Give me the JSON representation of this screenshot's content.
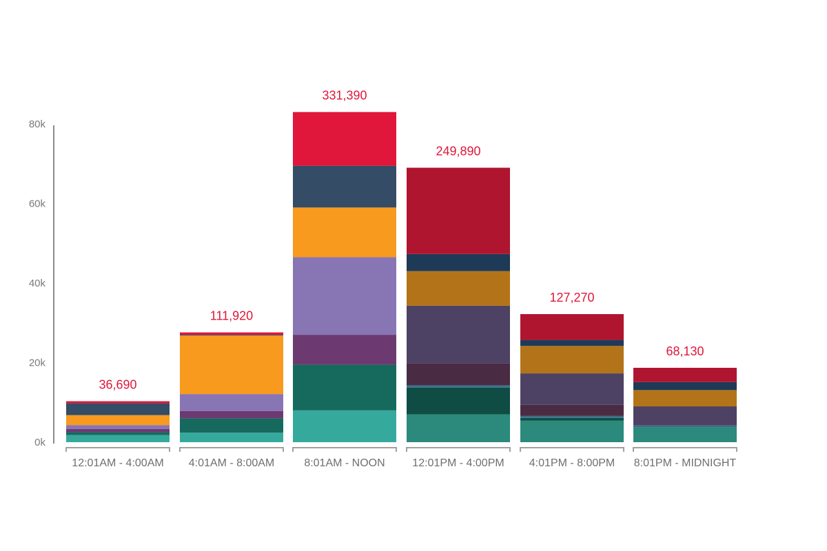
{
  "chart_data": {
    "type": "bar",
    "stacked": true,
    "categories": [
      "12:01AM - 4:00AM",
      "4:01AM - 8:00AM",
      "8:01AM - NOON",
      "12:01PM - 4:00PM",
      "4:01PM - 8:00PM",
      "8:01PM - MIDNIGHT"
    ],
    "totals": [
      "36,690",
      "111,920",
      "331,390",
      "249,890",
      "127,270",
      "68,130"
    ],
    "ylim": [
      0,
      80000
    ],
    "yticks": [
      0,
      20000,
      40000,
      60000,
      80000
    ],
    "ytick_labels": [
      "0k",
      "20k",
      "40k",
      "60k",
      "80k"
    ],
    "xlabel": "",
    "ylabel": "",
    "title": "",
    "legend": "none",
    "grid": false,
    "total_label_color": "#e0163a",
    "bars": [
      {
        "segments": [
          {
            "value": 1800,
            "color": "#35a99c"
          },
          {
            "value": 700,
            "color": "#16695d"
          },
          {
            "value": 800,
            "color": "#6c3a70"
          },
          {
            "value": 1000,
            "color": "#8875b4"
          },
          {
            "value": 2500,
            "color": "#f79a1e"
          },
          {
            "value": 3000,
            "color": "#344c65"
          },
          {
            "value": 500,
            "color": "#e0163a"
          }
        ]
      },
      {
        "segments": [
          {
            "value": 2400,
            "color": "#35a99c"
          },
          {
            "value": 3600,
            "color": "#16695d"
          },
          {
            "value": 1800,
            "color": "#6c3a70"
          },
          {
            "value": 4300,
            "color": "#8875b4"
          },
          {
            "value": 14700,
            "color": "#f79a1e"
          },
          {
            "value": 200,
            "color": "#344c65"
          },
          {
            "value": 600,
            "color": "#e0163a"
          }
        ]
      },
      {
        "segments": [
          {
            "value": 8000,
            "color": "#35a99c"
          },
          {
            "value": 11500,
            "color": "#16695d"
          },
          {
            "value": 7500,
            "color": "#6c3a70"
          },
          {
            "value": 19500,
            "color": "#8875b4"
          },
          {
            "value": 12500,
            "color": "#f79a1e"
          },
          {
            "value": 10500,
            "color": "#344c65"
          },
          {
            "value": 13500,
            "color": "#e0163a"
          }
        ]
      },
      {
        "segments": [
          {
            "value": 7000,
            "color": "#2b8a7b"
          },
          {
            "value": 6700,
            "color": "#0f4d44"
          },
          {
            "value": 600,
            "color": "#3a6f8a"
          },
          {
            "value": 5500,
            "color": "#4a2b44"
          },
          {
            "value": 14500,
            "color": "#4d4263"
          },
          {
            "value": 8700,
            "color": "#b37419"
          },
          {
            "value": 4300,
            "color": "#1e3a57"
          },
          {
            "value": 21700,
            "color": "#b0152f"
          }
        ]
      },
      {
        "segments": [
          {
            "value": 5400,
            "color": "#2b8a7b"
          },
          {
            "value": 700,
            "color": "#0f4d44"
          },
          {
            "value": 500,
            "color": "#3a6f8a"
          },
          {
            "value": 2800,
            "color": "#4a2b44"
          },
          {
            "value": 7900,
            "color": "#4d4263"
          },
          {
            "value": 6900,
            "color": "#b37419"
          },
          {
            "value": 1500,
            "color": "#1e3a57"
          },
          {
            "value": 6500,
            "color": "#b0152f"
          }
        ]
      },
      {
        "segments": [
          {
            "value": 3800,
            "color": "#2b8a7b"
          },
          {
            "value": 400,
            "color": "#3a6f8a"
          },
          {
            "value": 4800,
            "color": "#4d4263"
          },
          {
            "value": 4100,
            "color": "#b37419"
          },
          {
            "value": 2000,
            "color": "#1e3a57"
          },
          {
            "value": 3600,
            "color": "#b0152f"
          }
        ]
      }
    ]
  }
}
